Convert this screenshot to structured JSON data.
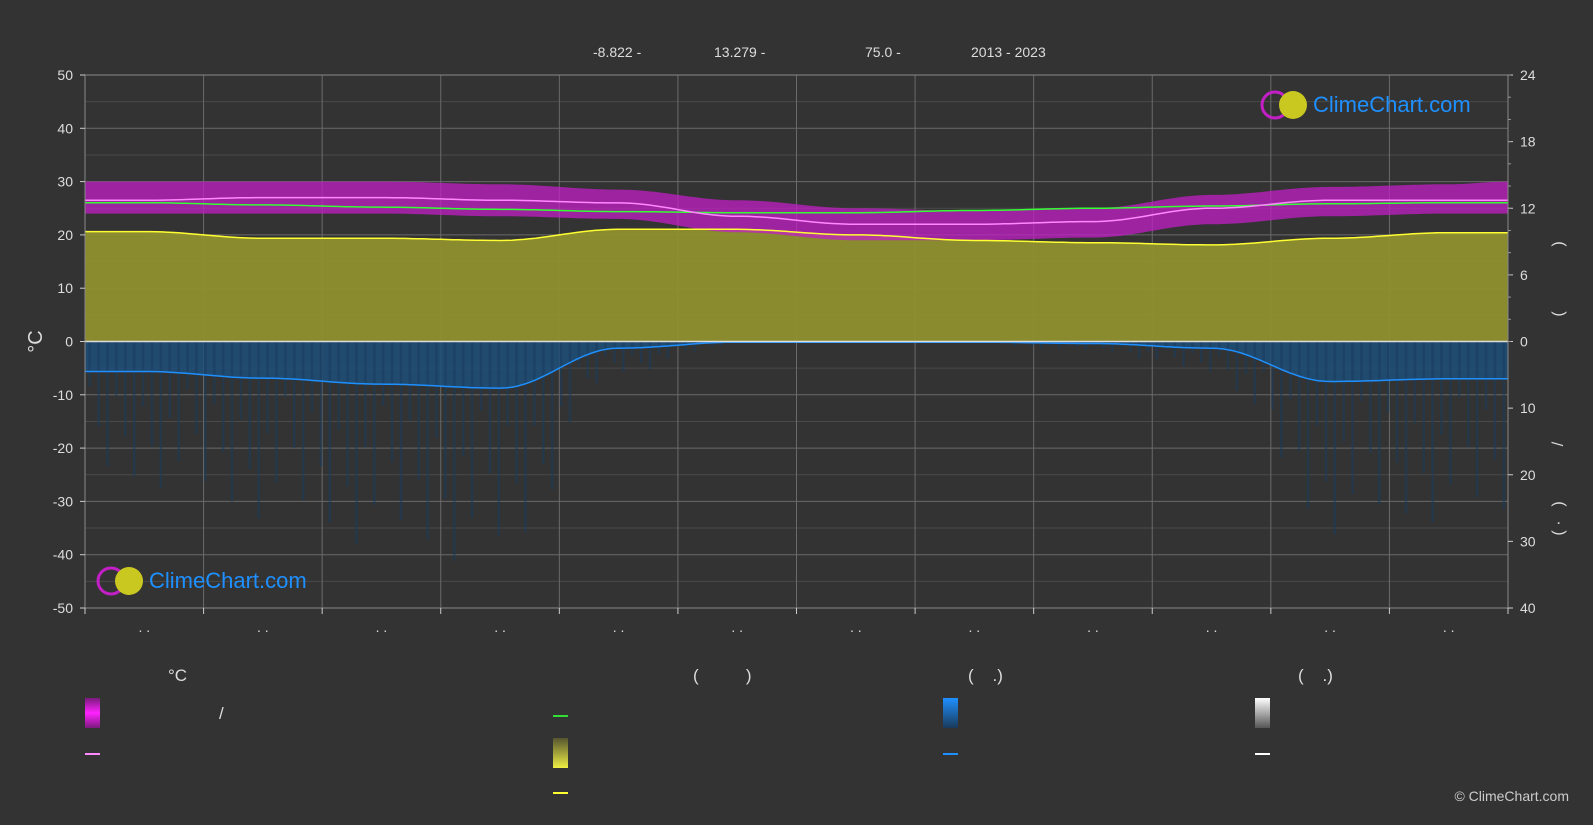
{
  "header": {
    "lat": "-8.822 -",
    "lon": "13.279 -",
    "elev": "75.0 -",
    "years": "2013 - 2023"
  },
  "brand": {
    "name": "ClimeChart.com",
    "copyright": "© ClimeChart.com"
  },
  "legend": {
    "temp_heading": "°C",
    "slash": "/",
    "sun_heading": "(          )",
    "rain_heading": "(    .)",
    "snow_heading": "(    .)"
  },
  "right_axis_parens": {
    "top": ")",
    "mid": "(",
    "slash": "/",
    "b1": ")",
    "b2": "(   ·"
  },
  "colors": {
    "background": "#333333",
    "temp_range": "#c21fc6",
    "daylight": "#33ff33",
    "sunshine_band": "#8f8f2e",
    "sunshine_line": "#ffff33",
    "avg_temp_line": "#ff88ff",
    "rain": "#1e90ff",
    "snow": "#ffffff"
  },
  "chart_data": {
    "type": "area",
    "months": 12,
    "month_tick_labels": [
      ". .",
      ". .",
      ". .",
      ". .",
      ". .",
      ". .",
      ". .",
      ". .",
      ". .",
      ". .",
      ". .",
      ". ."
    ],
    "ylabel_left": "°C",
    "ylim_left": [
      -50,
      50
    ],
    "yticks_left": [
      50,
      40,
      30,
      20,
      10,
      0,
      -10,
      -20,
      -30,
      -40,
      -50
    ],
    "yticks_right_top": [
      24,
      18,
      12,
      6,
      0
    ],
    "yticks_right_bottom": [
      10,
      20,
      30,
      40
    ],
    "ylim_right_top": [
      0,
      24
    ],
    "ylim_right_bottom": [
      0,
      40
    ],
    "x_month_index": [
      0.0,
      0.5,
      1.5,
      2.5,
      3.5,
      4.5,
      5.5,
      6.5,
      7.5,
      8.5,
      9.5,
      10.5,
      11.5,
      12.0
    ],
    "avg_temp_c": [
      26.5,
      26.5,
      27.0,
      27.0,
      26.5,
      26.0,
      23.5,
      22.0,
      22.0,
      22.5,
      25.0,
      26.5,
      26.5,
      26.5
    ],
    "temp_max_c": [
      30.0,
      30.0,
      30.0,
      30.0,
      29.5,
      28.5,
      26.5,
      25.0,
      24.5,
      25.0,
      27.5,
      29.0,
      29.5,
      30.0
    ],
    "temp_min_c": [
      24.0,
      24.0,
      24.0,
      24.0,
      23.5,
      23.0,
      20.5,
      19.0,
      19.0,
      19.5,
      22.0,
      23.5,
      24.0,
      24.0
    ],
    "daylight_h": [
      12.5,
      12.5,
      12.3,
      12.1,
      11.9,
      11.7,
      11.6,
      11.6,
      11.8,
      12.0,
      12.2,
      12.4,
      12.5,
      12.5
    ],
    "sunshine_h": [
      9.9,
      9.9,
      9.3,
      9.3,
      9.1,
      10.1,
      10.1,
      9.6,
      9.1,
      8.9,
      8.7,
      9.3,
      9.8,
      9.8
    ],
    "precip_mm": [
      4.5,
      4.5,
      5.5,
      6.4,
      7.0,
      1.0,
      0.1,
      0.1,
      0.1,
      0.3,
      1.0,
      6.0,
      5.6,
      5.6
    ]
  }
}
